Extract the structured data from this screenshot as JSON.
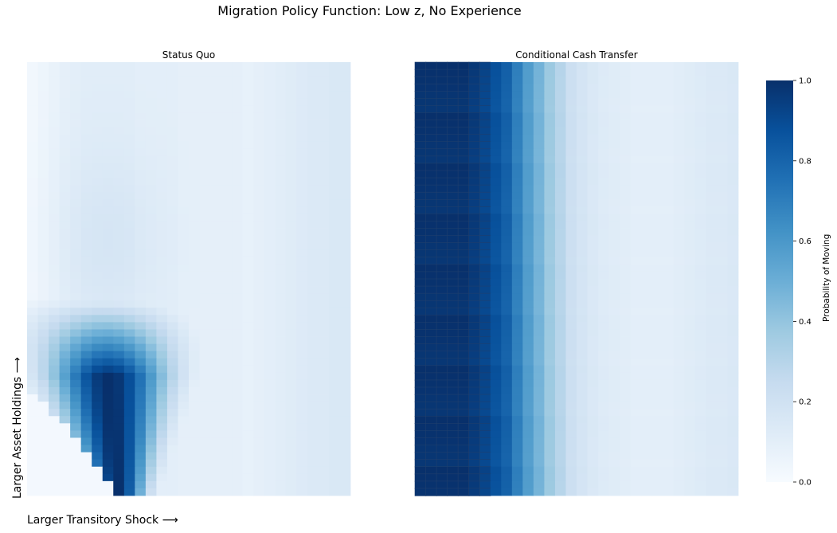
{
  "title": "Migration Policy Function: Low z, No Experience",
  "xlabel": "Larger Transitory Shock ⟶",
  "ylabel": "Larger Asset Holdings ⟶",
  "colorbar": {
    "label": "Probability of Moving",
    "ticks": [
      "0.0",
      "0.2",
      "0.4",
      "0.6",
      "0.8",
      "1.0"
    ],
    "range": [
      0,
      1
    ],
    "colormap": "Blues",
    "colors": [
      "#f7fbff",
      "#deebf7",
      "#c6dbef",
      "#9ecae1",
      "#6baed6",
      "#4292c6",
      "#2171b5",
      "#08519c",
      "#08306b"
    ]
  },
  "chart_data": [
    {
      "type": "heatmap",
      "title": "Status Quo",
      "columns": 30,
      "rows": 60,
      "xticks": "none",
      "yticks": "none",
      "values_description_free": true,
      "column_profile": [
        0.03,
        0.05,
        0.07,
        0.09,
        0.1,
        0.11,
        0.11,
        0.11,
        0.11,
        0.11,
        0.1,
        0.1,
        0.1,
        0.1,
        0.09,
        0.09,
        0.09,
        0.09,
        0.09,
        0.09,
        0.08,
        0.09,
        0.1,
        0.11,
        0.12,
        0.13,
        0.14,
        0.14,
        0.15,
        0.15
      ],
      "low_asset_region": {
        "peak_value": 1.0,
        "rows_affected": 18
      }
    },
    {
      "type": "heatmap",
      "title": "Conditional Cash Transfer",
      "columns": 30,
      "rows": 60,
      "xticks": "none",
      "yticks": "none",
      "column_profile": [
        1.0,
        1.0,
        1.0,
        1.0,
        1.0,
        0.97,
        0.93,
        0.88,
        0.82,
        0.7,
        0.58,
        0.48,
        0.38,
        0.3,
        0.22,
        0.18,
        0.15,
        0.13,
        0.12,
        0.11,
        0.1,
        0.1,
        0.1,
        0.1,
        0.11,
        0.12,
        0.13,
        0.14,
        0.14,
        0.15
      ]
    }
  ]
}
